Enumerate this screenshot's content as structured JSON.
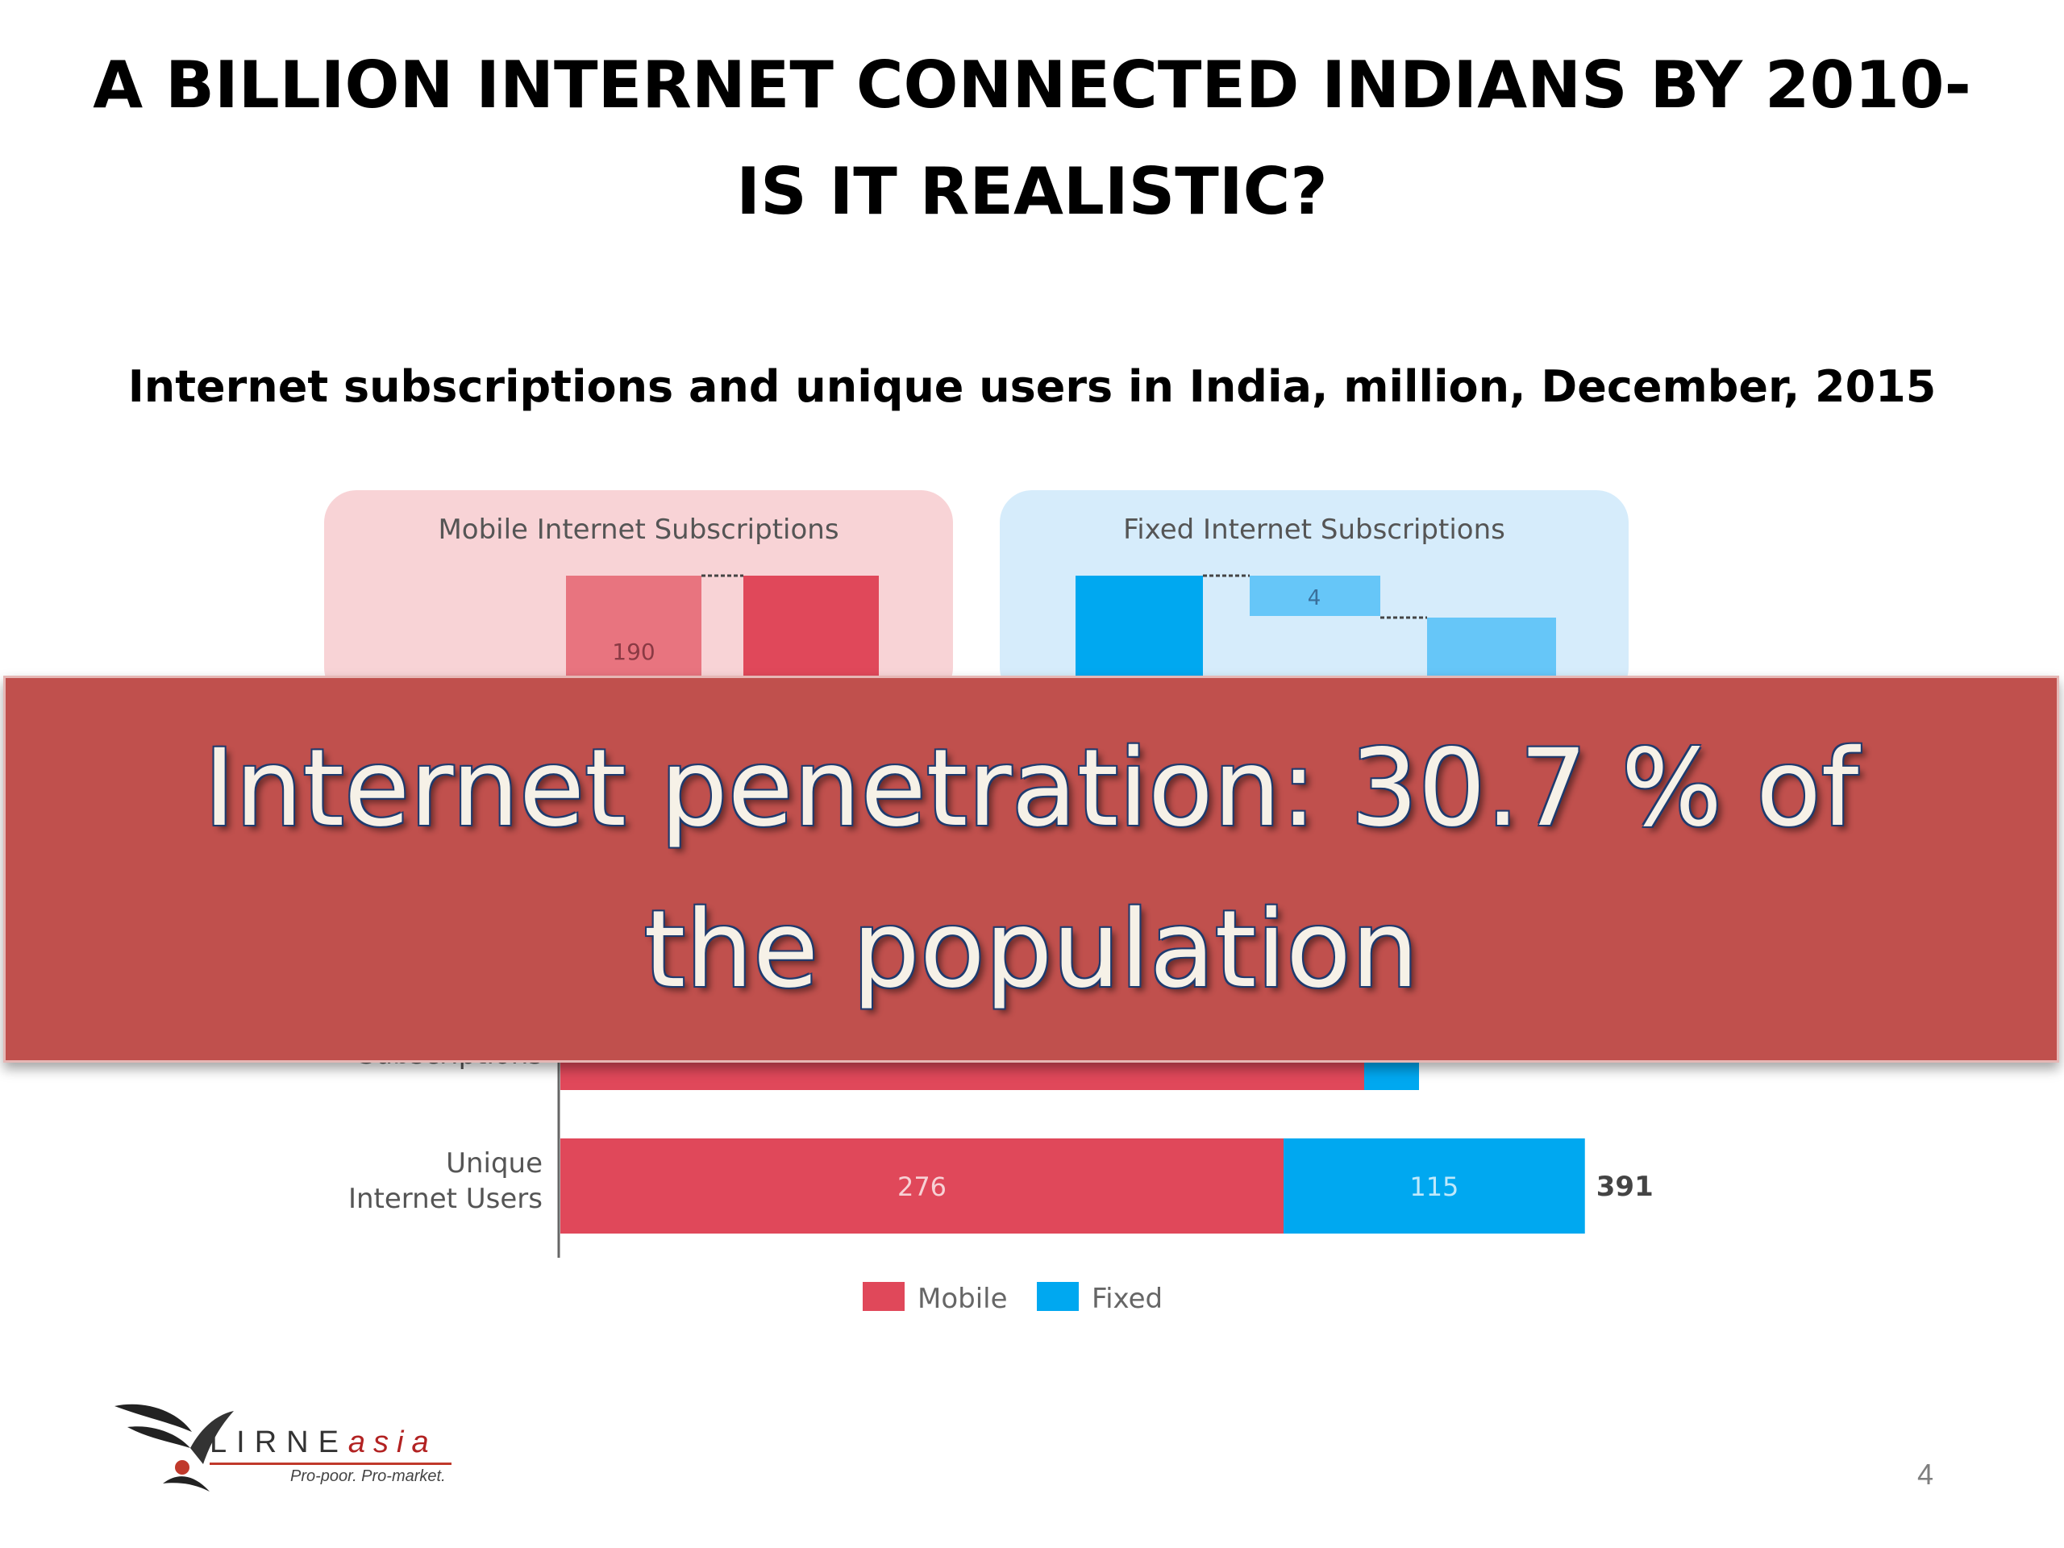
{
  "slide": {
    "title_line1": "A BILLION INTERNET CONNECTED INDIANS BY 2010-",
    "title_line2": "IS IT REALISTIC?",
    "subtitle": "Internet subscriptions and unique users in India, million, December, 2015",
    "banner_line1": "Internet penetration: 30.7 % of",
    "banner_line2": "the population",
    "page_number": "4"
  },
  "logo": {
    "name_main": "LIRNE",
    "name_suffix": "asia",
    "tagline": "Pro-poor. Pro-market."
  },
  "chart_data": [
    {
      "type": "bar",
      "title": "Mobile Internet  Subscriptions",
      "visible_labels": [
        "190"
      ],
      "colors": {
        "light": "#e8747f",
        "dark": "#e0485a",
        "panel": "#f8d3d6"
      }
    },
    {
      "type": "bar",
      "title": "Fixed Internet  Subscriptions",
      "visible_labels": [
        "4"
      ],
      "colors": {
        "dark": "#00a8f0",
        "light": "#66c6f8",
        "panel": "#d6ecfb"
      }
    },
    {
      "type": "bar",
      "orientation": "horizontal",
      "stacked": true,
      "categories": [
        "Unique\nInternet Users"
      ],
      "series": [
        {
          "name": "Mobile",
          "values": [
            276
          ],
          "color": "#e0485a"
        },
        {
          "name": "Fixed",
          "values": [
            115
          ],
          "color": "#00a8f0"
        }
      ],
      "totals": [
        "391"
      ],
      "legend_position": "bottom"
    }
  ]
}
